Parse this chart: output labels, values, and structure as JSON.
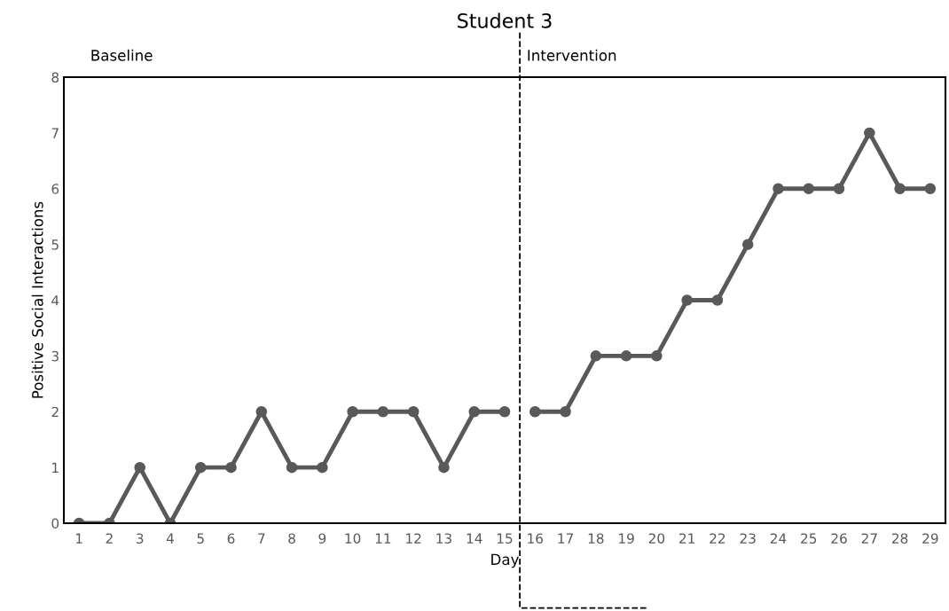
{
  "chart_data": {
    "type": "line",
    "title": "Student 3",
    "xlabel": "Day",
    "ylabel": "Positive Social Interactions",
    "annotations": [
      "Baseline",
      "Intervention"
    ],
    "xlim": [
      0.5,
      29.5
    ],
    "xticks": [
      1,
      2,
      3,
      4,
      5,
      6,
      7,
      8,
      9,
      10,
      11,
      12,
      13,
      14,
      15,
      16,
      17,
      18,
      19,
      20,
      21,
      22,
      23,
      24,
      25,
      26,
      27,
      28,
      29
    ],
    "ylim": [
      0,
      8
    ],
    "yticks": [
      0,
      1,
      2,
      3,
      4,
      5,
      6,
      7,
      8
    ],
    "series": [
      {
        "color": "#595959",
        "x": [
          1,
          2,
          3,
          4,
          5,
          6,
          7,
          8,
          9,
          10,
          11,
          12,
          13,
          14,
          15
        ],
        "values": [
          0,
          0,
          1,
          0,
          1,
          1,
          2,
          1,
          1,
          2,
          2,
          2,
          1,
          2,
          2
        ]
      },
      {
        "color": "#595959",
        "x": [
          16,
          17,
          18,
          19,
          20,
          21,
          22,
          23,
          24,
          25,
          26,
          27,
          28,
          29
        ],
        "values": [
          2,
          2,
          3,
          3,
          3,
          4,
          4,
          5,
          6,
          6,
          6,
          7,
          6,
          6
        ]
      }
    ],
    "ref_lines": [
      {
        "axis": "x",
        "value": 15.5,
        "color": "#000000",
        "line_style": "dashed"
      }
    ],
    "marker": "circle",
    "line_style": "solid",
    "grid": false,
    "legend": false
  }
}
